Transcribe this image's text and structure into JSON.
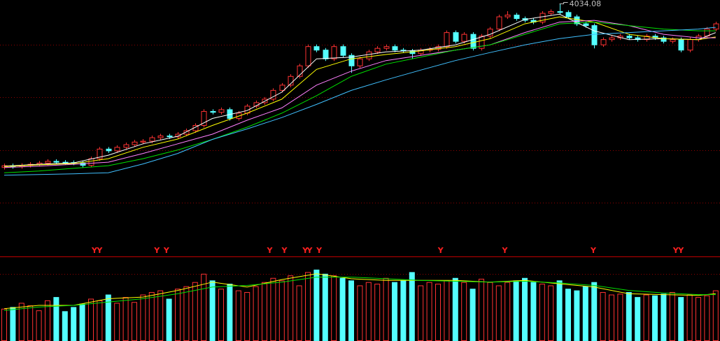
{
  "chart_data": {
    "type": "candlestick",
    "open": [
      3100,
      3110,
      3105,
      3112,
      3118,
      3125,
      3135,
      3130,
      3128,
      3125,
      3112,
      3150,
      3205,
      3195,
      3215,
      3230,
      3245,
      3250,
      3270,
      3280,
      3275,
      3290,
      3310,
      3340,
      3420,
      3415,
      3430,
      3380,
      3410,
      3450,
      3470,
      3490,
      3540,
      3570,
      3620,
      3680,
      3790,
      3770,
      3720,
      3790,
      3740,
      3680,
      3720,
      3760,
      3780,
      3790,
      3770,
      3765,
      3750,
      3770,
      3775,
      3790,
      3870,
      3820,
      3860,
      3780,
      3850,
      3890,
      3960,
      3970,
      3950,
      3940,
      3930,
      3980,
      3990,
      3985,
      3960,
      3920,
      3910,
      3800,
      3830,
      3840,
      3850,
      3840,
      3830,
      3850,
      3840,
      3820,
      3830,
      3770,
      3830,
      3850,
      3890
    ],
    "high": [
      3122,
      3122,
      3124,
      3130,
      3137,
      3147,
      3147,
      3142,
      3140,
      3137,
      3162,
      3217,
      3217,
      3227,
      3242,
      3257,
      3262,
      3282,
      3292,
      3292,
      3302,
      3322,
      3352,
      3432,
      3432,
      3442,
      3442,
      3422,
      3462,
      3482,
      3502,
      3552,
      3582,
      3632,
      3692,
      3802,
      3802,
      3782,
      3802,
      3802,
      3752,
      3732,
      3772,
      3792,
      3802,
      3802,
      3782,
      3777,
      3782,
      3787,
      3802,
      3882,
      3882,
      3872,
      3872,
      3862,
      3902,
      3972,
      3992,
      3982,
      3962,
      3952,
      3992,
      4002,
      4034.08,
      3997,
      3972,
      3932,
      3922,
      3842,
      3852,
      3862,
      3862,
      3852,
      3862,
      3862,
      3852,
      3842,
      3842,
      3842,
      3862,
      3902,
      3932
    ],
    "low": [
      3088,
      3093,
      3093,
      3100,
      3106,
      3113,
      3118,
      3116,
      3113,
      3100,
      3100,
      3138,
      3183,
      3183,
      3203,
      3218,
      3233,
      3238,
      3258,
      3263,
      3263,
      3278,
      3298,
      3328,
      3403,
      3403,
      3368,
      3368,
      3398,
      3438,
      3458,
      3478,
      3528,
      3558,
      3608,
      3668,
      3758,
      3708,
      3708,
      3728,
      3640,
      3668,
      3708,
      3748,
      3768,
      3758,
      3753,
      3720,
      3738,
      3758,
      3763,
      3778,
      3808,
      3808,
      3768,
      3768,
      3838,
      3878,
      3948,
      3938,
      3928,
      3918,
      3918,
      3968,
      3973,
      3948,
      3908,
      3898,
      3780,
      3788,
      3818,
      3828,
      3828,
      3818,
      3818,
      3828,
      3808,
      3808,
      3758,
      3758,
      3818,
      3838,
      3878
    ],
    "close": [
      3110,
      3105,
      3112,
      3118,
      3125,
      3135,
      3130,
      3128,
      3125,
      3112,
      3150,
      3205,
      3195,
      3215,
      3230,
      3245,
      3250,
      3270,
      3280,
      3275,
      3290,
      3310,
      3340,
      3420,
      3415,
      3430,
      3380,
      3410,
      3450,
      3470,
      3490,
      3540,
      3570,
      3620,
      3680,
      3790,
      3770,
      3720,
      3790,
      3740,
      3680,
      3720,
      3760,
      3780,
      3790,
      3770,
      3765,
      3750,
      3770,
      3775,
      3790,
      3870,
      3820,
      3860,
      3780,
      3850,
      3890,
      3960,
      3970,
      3950,
      3940,
      3930,
      3980,
      3990,
      3985,
      3960,
      3920,
      3910,
      3800,
      3830,
      3840,
      3850,
      3840,
      3830,
      3850,
      3840,
      3820,
      3830,
      3770,
      3830,
      3850,
      3890,
      3920
    ],
    "up_color": "#ff3232",
    "down_color": "#54ffff",
    "ylim": [
      2600,
      4056
    ],
    "gridlines": [
      3800,
      3500,
      3200,
      2900
    ],
    "moving_averages": {
      "x": [
        0,
        4,
        8,
        12,
        16,
        20,
        24,
        28,
        32,
        36,
        40,
        44,
        48,
        52,
        56,
        60,
        64,
        68,
        72,
        76,
        80,
        82
      ],
      "series": [
        {
          "color": "#ffffff",
          "values": [
            3108,
            3118,
            3126,
            3170,
            3235,
            3278,
            3380,
            3425,
            3530,
            3720,
            3730,
            3760,
            3770,
            3800,
            3860,
            3945,
            3975,
            3880,
            3830,
            3835,
            3830,
            3870
          ]
        },
        {
          "color": "#ffff00",
          "values": [
            3105,
            3115,
            3122,
            3150,
            3215,
            3262,
            3340,
            3410,
            3490,
            3660,
            3720,
            3745,
            3765,
            3790,
            3835,
            3920,
            3960,
            3930,
            3860,
            3835,
            3830,
            3845
          ]
        },
        {
          "color": "#ff80ff",
          "values": [
            3100,
            3108,
            3118,
            3130,
            3180,
            3235,
            3290,
            3370,
            3440,
            3570,
            3650,
            3710,
            3740,
            3770,
            3800,
            3870,
            3930,
            3940,
            3910,
            3860,
            3840,
            3840
          ]
        },
        {
          "color": "#00e000",
          "values": [
            3070,
            3080,
            3095,
            3110,
            3150,
            3200,
            3260,
            3330,
            3410,
            3510,
            3620,
            3690,
            3730,
            3770,
            3800,
            3860,
            3920,
            3930,
            3910,
            3890,
            3880,
            3880
          ]
        },
        {
          "color": "#40c0ff",
          "values": [
            3056,
            3060,
            3064,
            3070,
            3120,
            3180,
            3260,
            3320,
            3385,
            3460,
            3540,
            3600,
            3656,
            3710,
            3756,
            3800,
            3836,
            3860,
            3870,
            3880,
            3890,
            3900
          ]
        }
      ]
    },
    "signals": {
      "x": [
        10.4,
        11,
        17.6,
        18.7,
        30.6,
        32.3,
        34.7,
        35.2,
        36.3,
        50.3,
        57.7,
        67.9,
        77.4,
        78
      ],
      "labels": [
        "Y",
        "Y",
        "Y",
        "Y",
        "Y",
        "Y",
        "Y",
        "Y",
        "Y",
        "Y",
        "Y",
        "Y",
        "Y",
        "Y"
      ],
      "color": "#ff2020"
    },
    "volume": {
      "values": [
        38,
        40,
        45,
        42,
        36,
        48,
        52,
        35,
        40,
        44,
        50,
        48,
        55,
        45,
        52,
        46,
        55,
        58,
        60,
        50,
        62,
        65,
        70,
        80,
        72,
        62,
        68,
        60,
        58,
        65,
        70,
        75,
        72,
        78,
        66,
        82,
        85,
        80,
        78,
        75,
        72,
        66,
        70,
        68,
        75,
        70,
        72,
        82,
        66,
        70,
        68,
        72,
        75,
        70,
        62,
        74,
        70,
        66,
        70,
        72,
        75,
        70,
        68,
        66,
        72,
        62,
        60,
        65,
        70,
        58,
        55,
        56,
        58,
        52,
        55,
        54,
        56,
        58,
        52,
        55,
        52,
        54,
        60
      ],
      "ylim": [
        0,
        100
      ],
      "gridlines": [
        80
      ],
      "moving_averages": {
        "x": [
          0,
          4,
          8,
          12,
          16,
          20,
          24,
          28,
          32,
          36,
          40,
          44,
          48,
          52,
          56,
          60,
          64,
          68,
          72,
          76,
          80,
          82
        ],
        "series": [
          {
            "color": "#ffff00",
            "values": [
              38,
              42,
              42,
              50,
              52,
              60,
              70,
              64,
              73,
              80,
              74,
              72,
              72,
              72,
              70,
              72,
              68,
              64,
              56,
              55,
              54,
              56
            ]
          },
          {
            "color": "#00e000",
            "values": [
              36,
              40,
              42,
              46,
              50,
              56,
              64,
              66,
              70,
              76,
              76,
              74,
              72,
              71,
              70,
              71,
              69,
              66,
              60,
              57,
              55,
              55
            ]
          }
        ]
      }
    }
  }
}
